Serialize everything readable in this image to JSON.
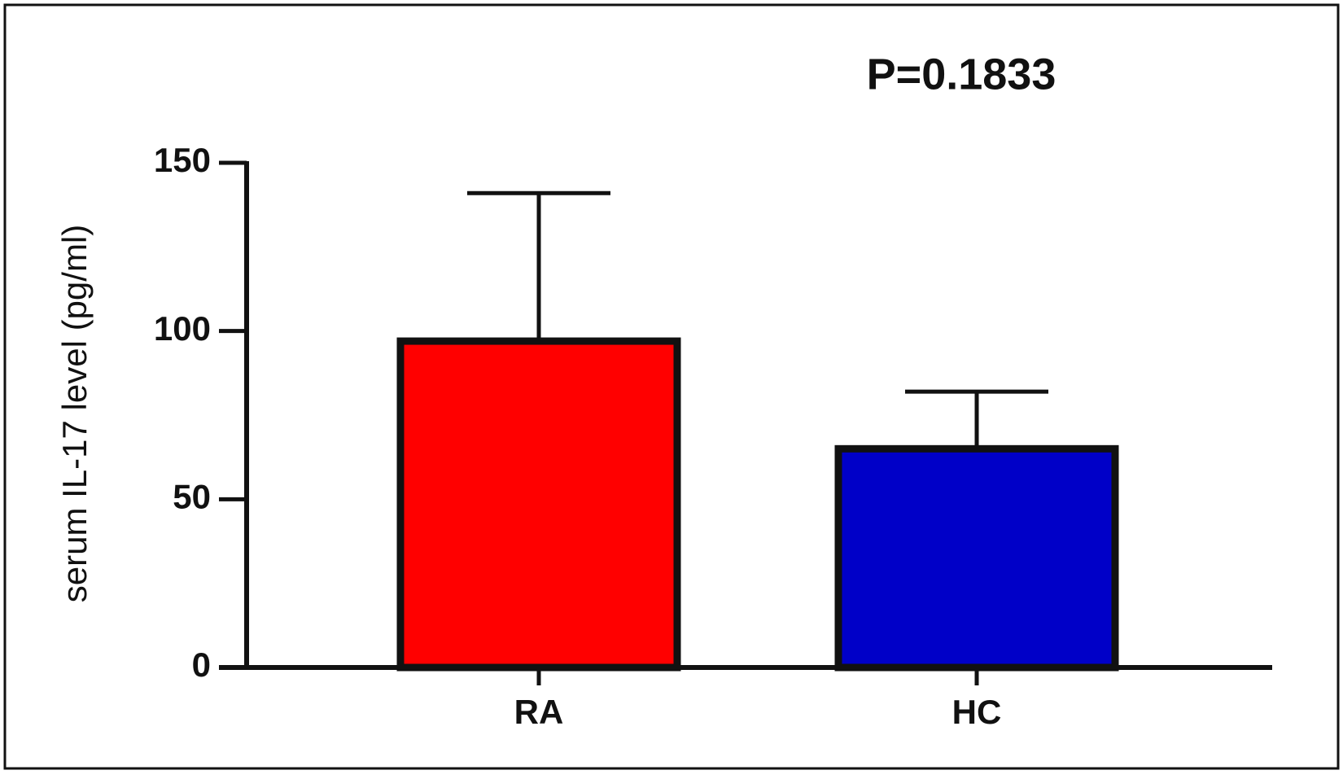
{
  "chart_data": {
    "type": "bar",
    "annotation": "P=0.1833",
    "y_label": "serum IL-17 level (pg/ml)",
    "categories": [
      "RA",
      "HC"
    ],
    "values": [
      97,
      65
    ],
    "errors": [
      44,
      17
    ],
    "colors": [
      "#ff0000",
      "#0000c8"
    ],
    "ylim": [
      0,
      150
    ],
    "yticks": [
      0,
      50,
      100,
      150
    ]
  }
}
